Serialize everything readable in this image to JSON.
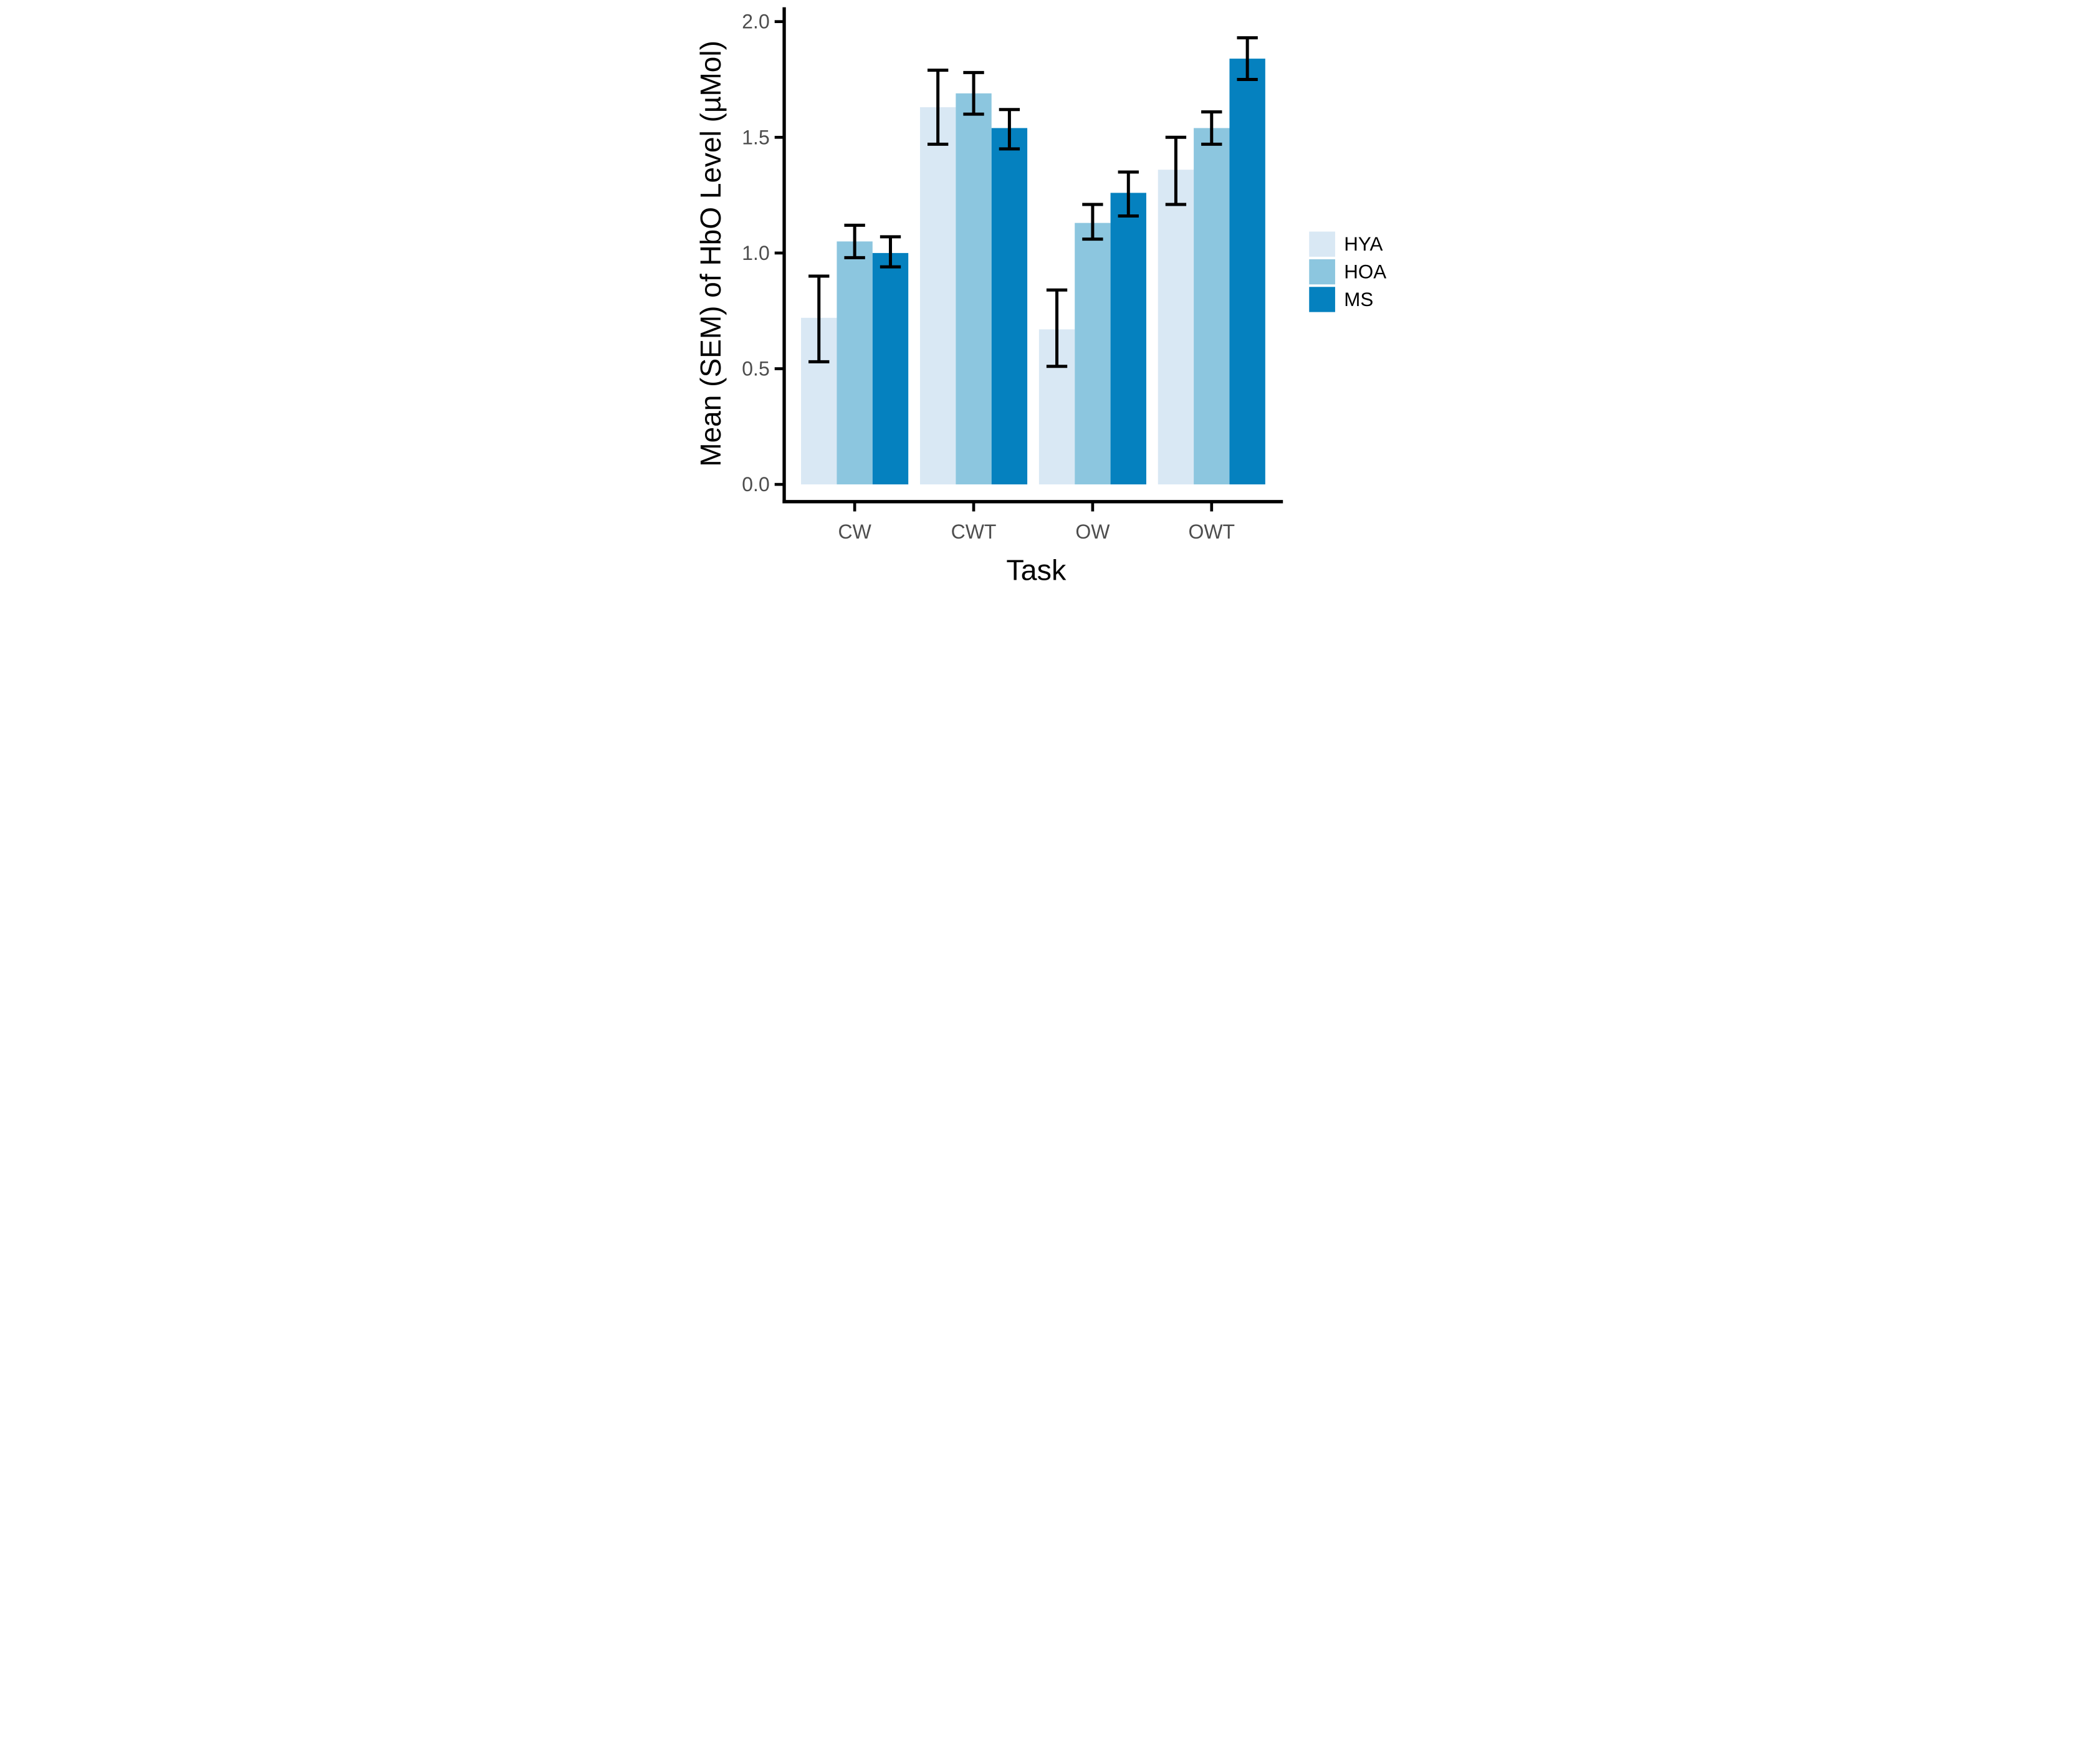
{
  "figure": {
    "background": "#FFFFFF",
    "axis_color": "#000000",
    "tick_label_color": "#4D4D4D",
    "error_bar_color": "#000000"
  },
  "chart_data": {
    "type": "bar",
    "title": "",
    "xlabel": "Task",
    "ylabel": "Mean (SEM) of HbO Level (µMol)",
    "categories": [
      "CW",
      "CWT",
      "OW",
      "OWT"
    ],
    "series": [
      {
        "name": "HYA",
        "color": "#D9E8F4",
        "values": [
          0.72,
          1.63,
          0.67,
          1.36
        ],
        "error_low": [
          0.53,
          1.47,
          0.51,
          1.21
        ],
        "error_high": [
          0.9,
          1.79,
          0.84,
          1.5
        ]
      },
      {
        "name": "HOA",
        "color": "#8CC6DF",
        "values": [
          1.05,
          1.69,
          1.13,
          1.54
        ],
        "error_low": [
          0.98,
          1.6,
          1.06,
          1.47
        ],
        "error_high": [
          1.12,
          1.78,
          1.21,
          1.61
        ]
      },
      {
        "name": "MS",
        "color": "#0581BF",
        "values": [
          1.0,
          1.54,
          1.26,
          1.84
        ],
        "error_low": [
          0.94,
          1.45,
          1.16,
          1.75
        ],
        "error_high": [
          1.07,
          1.62,
          1.35,
          1.93
        ]
      }
    ],
    "y_ticks": [
      0.0,
      0.5,
      1.0,
      1.5,
      2.0
    ],
    "y_tick_labels": [
      "0.0",
      "0.5",
      "1.0",
      "1.5",
      "2.0"
    ],
    "ylim": [
      0,
      2.07
    ],
    "grid": false,
    "error_bars": true,
    "legend_position": "right",
    "legend_entries": [
      "HYA",
      "HOA",
      "MS"
    ]
  }
}
